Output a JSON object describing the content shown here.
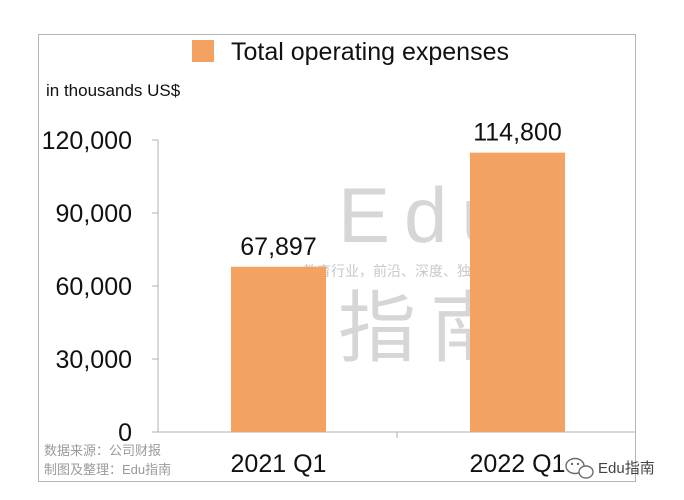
{
  "chart_data": {
    "type": "bar",
    "legend": "Total operating expenses",
    "unit_label": "in thousands US$",
    "categories": [
      "2021 Q1",
      "2022 Q1"
    ],
    "series": [
      {
        "name": "Total operating expenses",
        "values": [
          67897,
          114800
        ],
        "color": "#f4a261"
      }
    ],
    "data_labels": [
      "67,897",
      "114,800"
    ],
    "ylim": [
      0,
      120000
    ],
    "yticks": [
      0,
      30000,
      60000,
      90000,
      120000
    ],
    "ytick_labels": [
      "0",
      "30,000",
      "60,000",
      "90,000",
      "120,000"
    ],
    "grid": false,
    "legend_position": "top"
  },
  "source_note": {
    "line1": "数据来源：公司财报",
    "line2": "制图及整理：Edu指南"
  },
  "watermark": {
    "big_top": "Edu",
    "tagline": "教育行业，前沿、深度、独家",
    "big_bottom": "指南"
  },
  "brand": {
    "label": "Edu指南",
    "icon": "wechat-icon"
  }
}
